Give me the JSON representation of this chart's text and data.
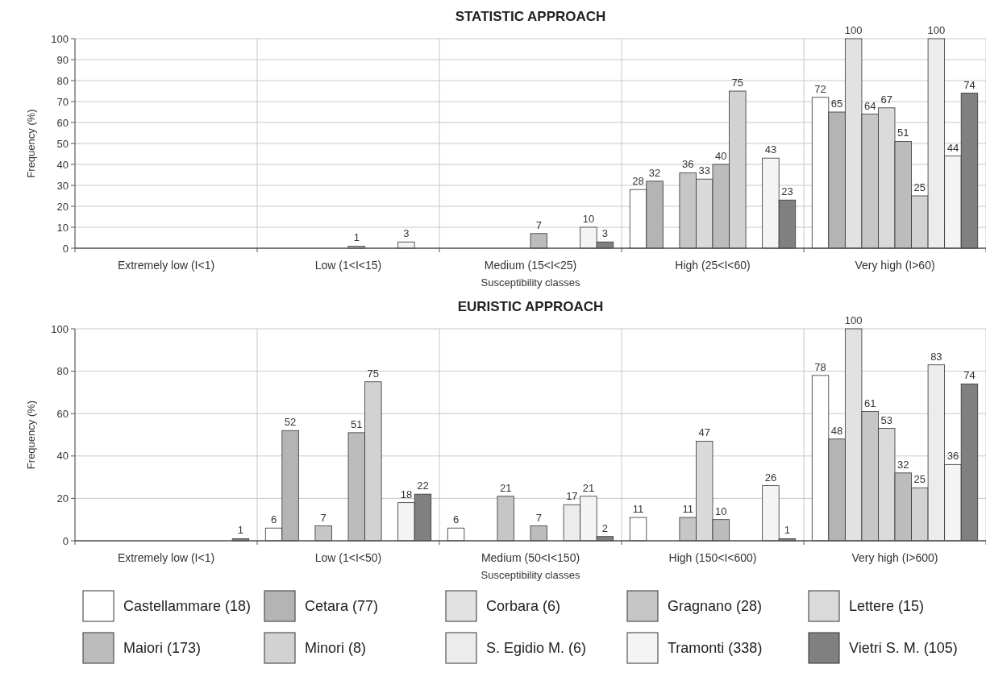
{
  "chart_data": [
    {
      "type": "bar",
      "title": "STATISTIC APPROACH",
      "xlabel": "Susceptibility classes",
      "ylabel": "Frequency (%)",
      "categories": [
        "Extremely low (I<1)",
        "Low (1<I<15)",
        "Medium (15<I<25)",
        "High (25<I<60)",
        "Very high (I>60)"
      ],
      "ylim": [
        0,
        100
      ],
      "yticks": [
        0,
        10,
        20,
        30,
        40,
        50,
        60,
        70,
        80,
        90,
        100
      ],
      "grid": true,
      "data_labels": true,
      "legend": false,
      "series": [
        {
          "color": "#ffffff",
          "values": [
            null,
            null,
            null,
            28,
            72
          ]
        },
        {
          "color": "#b4b4b4",
          "values": [
            null,
            null,
            null,
            32,
            65
          ]
        },
        {
          "color": "#e2e2e2",
          "values": [
            null,
            null,
            null,
            null,
            100
          ]
        },
        {
          "color": "#c6c6c6",
          "values": [
            null,
            null,
            null,
            36,
            64
          ]
        },
        {
          "color": "#dadada",
          "values": [
            null,
            null,
            null,
            33,
            67
          ]
        },
        {
          "color": "#bcbcbc",
          "values": [
            null,
            1,
            7,
            40,
            51
          ]
        },
        {
          "color": "#d2d2d2",
          "values": [
            null,
            null,
            null,
            75,
            25
          ]
        },
        {
          "color": "#ececec",
          "values": [
            null,
            null,
            null,
            null,
            100
          ]
        },
        {
          "color": "#f4f4f4",
          "values": [
            null,
            3,
            10,
            43,
            44
          ]
        },
        {
          "color": "#808080",
          "values": [
            null,
            null,
            3,
            23,
            74
          ]
        }
      ]
    },
    {
      "type": "bar",
      "title": "EURISTIC APPROACH",
      "xlabel": "Susceptibility classes",
      "ylabel": "Frequency (%)",
      "categories": [
        "Extremely low (I<1)",
        "Low (1<I<50)",
        "Medium (50<I<150)",
        "High (150<I<600)",
        "Very high (I>600)"
      ],
      "ylim": [
        0,
        100
      ],
      "yticks": [
        0,
        20,
        40,
        60,
        80,
        100
      ],
      "grid": true,
      "data_labels": true,
      "legend": "bottom",
      "series": [
        {
          "name": "Castellammare (18)",
          "color": "#ffffff",
          "values": [
            null,
            6,
            6,
            11,
            78
          ]
        },
        {
          "name": "Cetara (77)",
          "color": "#b4b4b4",
          "values": [
            null,
            52,
            null,
            null,
            48
          ]
        },
        {
          "name": "Corbara (6)",
          "color": "#e2e2e2",
          "values": [
            null,
            null,
            null,
            null,
            100
          ]
        },
        {
          "name": "Gragnano (28)",
          "color": "#c6c6c6",
          "values": [
            null,
            7,
            21,
            11,
            61
          ]
        },
        {
          "name": "Lettere (15)",
          "color": "#dadada",
          "values": [
            null,
            null,
            null,
            47,
            53
          ]
        },
        {
          "name": "Maiori (173)",
          "color": "#bcbcbc",
          "values": [
            null,
            51,
            7,
            10,
            32
          ]
        },
        {
          "name": "Minori (8)",
          "color": "#d2d2d2",
          "values": [
            null,
            75,
            null,
            null,
            25
          ]
        },
        {
          "name": "S. Egidio M. (6)",
          "color": "#ececec",
          "values": [
            null,
            null,
            17,
            null,
            83
          ]
        },
        {
          "name": "Tramonti (338)",
          "color": "#f4f4f4",
          "values": [
            null,
            18,
            21,
            26,
            36
          ]
        },
        {
          "name": "Vietri S. M. (105)",
          "color": "#808080",
          "values": [
            1,
            22,
            2,
            1,
            74
          ]
        }
      ]
    }
  ]
}
